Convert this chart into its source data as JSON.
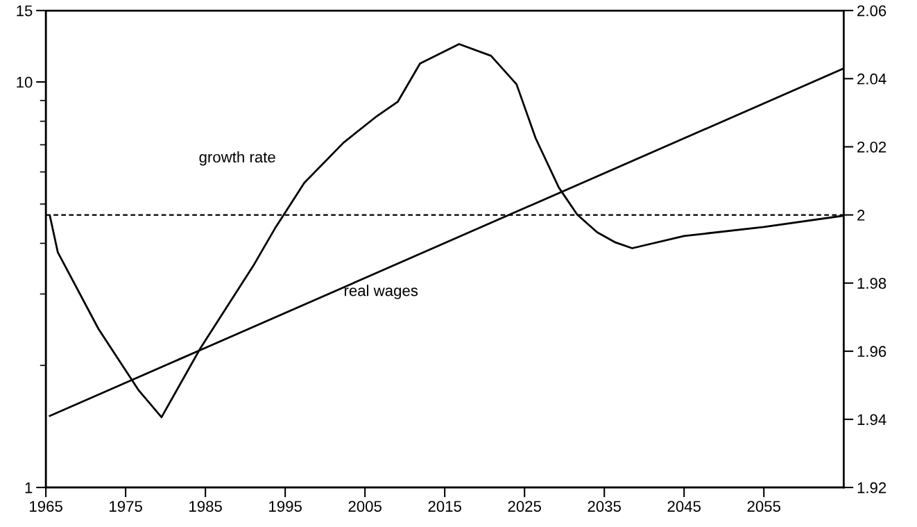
{
  "chart_data": {
    "type": "line",
    "x": [
      1965.5,
      1966.5,
      1971.6,
      1976.6,
      1979.5,
      1984.4,
      1991,
      1993.8,
      1997.4,
      2002.3,
      2006.3,
      2009.1,
      2011.9,
      2016.8,
      2020.8,
      2024.0,
      2026.4,
      2029.3,
      2031.6,
      2034.1,
      2036.4,
      2038.5,
      2045,
      2055,
      2065
    ],
    "series": [
      {
        "name": "growth rate",
        "color": "#000000",
        "values": [
          4.68,
          3.8,
          2.46,
          1.74,
          1.49,
          2.21,
          3.52,
          4.38,
          5.64,
          7.08,
          8.18,
          8.93,
          11.1,
          12.4,
          11.6,
          9.87,
          7.26,
          5.49,
          4.71,
          4.26,
          4.02,
          3.89,
          4.17,
          4.39,
          4.68
        ]
      },
      {
        "name": "real wages",
        "color": "#000000",
        "axis": "y2",
        "x": [
          1965.5,
          2065
        ],
        "values": [
          1.941,
          2.043
        ]
      }
    ],
    "log": "y",
    "xlim": [
      1965,
      2065
    ],
    "xticks": [
      1965,
      1975,
      1985,
      1995,
      2005,
      2015,
      2025,
      2035,
      2045,
      2055
    ],
    "ylim": [
      1,
      15
    ],
    "yticks": [
      1,
      10,
      15
    ],
    "y2lim": [
      1.92,
      2.06
    ],
    "y2ticks": [
      1.92,
      1.94,
      1.96,
      1.98,
      2,
      2.02,
      2.04,
      2.06
    ],
    "ref_lines": [
      {
        "axis": "y2",
        "value": 2,
        "color": "#000000",
        "line_style": "dashed"
      }
    ],
    "grid": false,
    "legend": false,
    "line_style": "solid",
    "marker": "none"
  }
}
